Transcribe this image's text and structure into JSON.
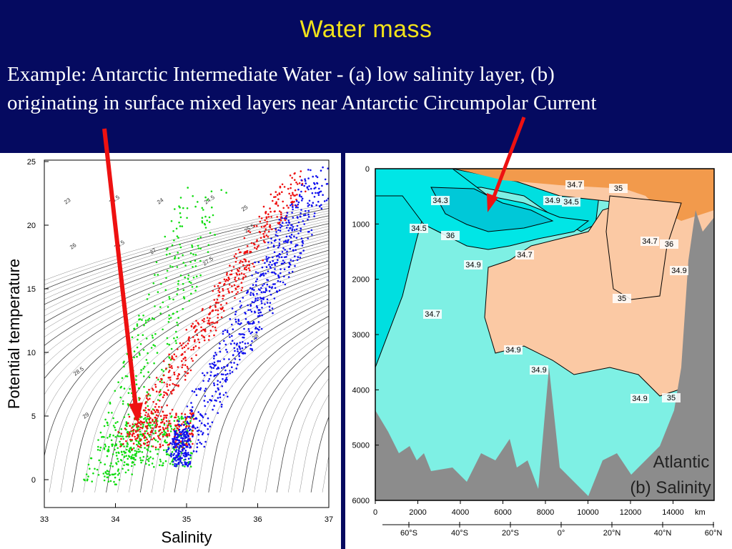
{
  "slide": {
    "title": "Water mass",
    "line1": "Example: Antarctic Intermediate Water - (a) low salinity layer, (b)",
    "line2": "originating in surface mixed layers near Antarctic Circumpolar Current"
  },
  "ts_plot": {
    "xlabel": "Salinity",
    "ylabel": "Potential temperature",
    "x_ticks": [
      "33",
      "34",
      "35",
      "36",
      "37"
    ],
    "y_ticks": [
      "0",
      "5",
      "10",
      "15",
      "20",
      "25"
    ],
    "isopycnal_labels": [
      "23",
      "23.5",
      "24",
      "24.5",
      "25",
      "25.5",
      "26",
      "26.5",
      "27",
      "27.5",
      "28",
      "28.5",
      "29"
    ]
  },
  "section_plot": {
    "depth_ticks": [
      "0",
      "1000",
      "2000",
      "3000",
      "4000",
      "5000",
      "6000"
    ],
    "km_ticks": [
      "0",
      "2000",
      "4000",
      "6000",
      "8000",
      "10000",
      "12000",
      "14000"
    ],
    "km_unit": "km",
    "lat_ticks": [
      "60°S",
      "40°S",
      "20°S",
      "0°",
      "20°N",
      "40°N",
      "60°N"
    ],
    "contour_labels": [
      "34.3",
      "34.5",
      "34.7",
      "35",
      "36",
      "34.9",
      "34.5",
      "34.7",
      "36",
      "35",
      "34.9",
      "34.7",
      "34.9",
      "35",
      "34.7",
      "34.9",
      "34.9",
      "34.9"
    ],
    "label_ocean": "Atlantic",
    "label_var": "(b) Salinity"
  },
  "colors": {
    "background": "#050a60",
    "title": "#f2e21a",
    "arrow": "#ee1111",
    "fresh": "#00dfe0",
    "mid": "#7ef0e4",
    "salty": "#fbc9a4",
    "saltiest": "#f29a4c",
    "topography": "#8c8c8c"
  }
}
